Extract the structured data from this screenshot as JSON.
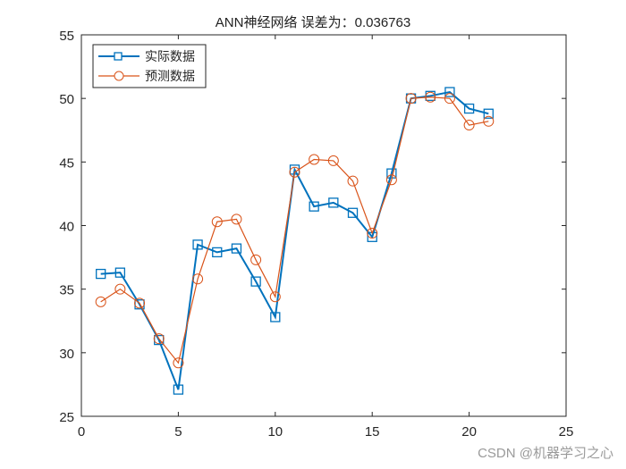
{
  "chart_data": {
    "type": "line",
    "title": "ANN神经网络   误差为：0.036763",
    "xlabel": "",
    "ylabel": "",
    "xlim": [
      0,
      25
    ],
    "ylim": [
      25,
      55
    ],
    "xticks": [
      0,
      5,
      10,
      15,
      20,
      25
    ],
    "yticks": [
      25,
      30,
      35,
      40,
      45,
      50,
      55
    ],
    "grid": false,
    "legend_position": "top-left",
    "x": [
      1,
      2,
      3,
      4,
      5,
      6,
      7,
      8,
      9,
      10,
      11,
      12,
      13,
      14,
      15,
      16,
      17,
      18,
      19,
      20,
      21
    ],
    "series": [
      {
        "name": "实际数据",
        "color": "#0072BD",
        "marker": "square",
        "values": [
          36.2,
          36.3,
          33.8,
          31.0,
          27.1,
          38.5,
          37.9,
          38.2,
          35.6,
          32.8,
          44.4,
          41.5,
          41.8,
          41.0,
          39.1,
          44.1,
          50.0,
          50.2,
          50.5,
          49.2,
          48.8
        ]
      },
      {
        "name": "预测数据",
        "color": "#D95319",
        "marker": "circle",
        "values": [
          34.0,
          35.0,
          33.9,
          31.1,
          29.2,
          35.8,
          40.3,
          40.5,
          37.3,
          34.4,
          44.2,
          45.2,
          45.1,
          43.5,
          39.4,
          43.6,
          50.0,
          50.1,
          50.0,
          47.9,
          48.2
        ]
      }
    ]
  },
  "watermark": "CSDN @机器学习之心"
}
